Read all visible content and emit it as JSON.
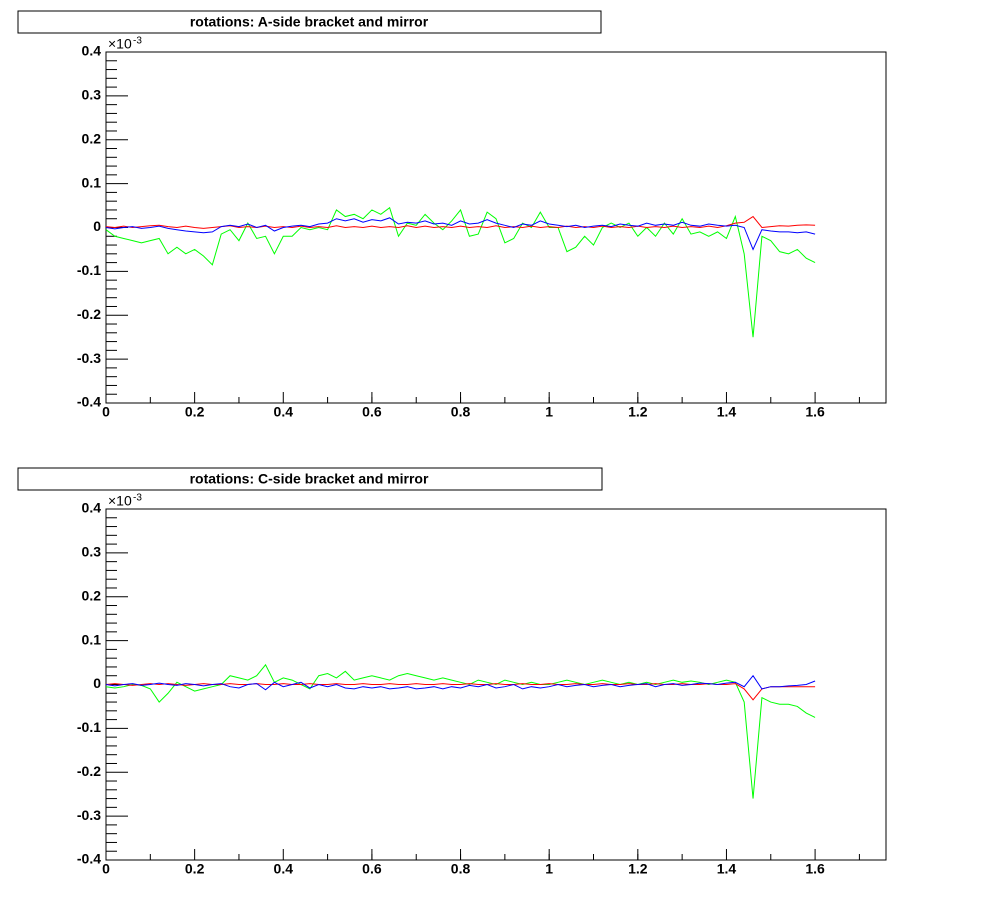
{
  "chart_data": [
    {
      "type": "line",
      "title": "rotations: A-side bracket and mirror",
      "y_multiplier": "×10",
      "y_exponent": "-3",
      "x": [
        0,
        0.02,
        0.04,
        0.06,
        0.08,
        0.1,
        0.12,
        0.14,
        0.16,
        0.18,
        0.2,
        0.22,
        0.24,
        0.26,
        0.28,
        0.3,
        0.32,
        0.34,
        0.36,
        0.38,
        0.4,
        0.42,
        0.44,
        0.46,
        0.48,
        0.5,
        0.52,
        0.54,
        0.56,
        0.58,
        0.6,
        0.62,
        0.64,
        0.66,
        0.68,
        0.7,
        0.72,
        0.74,
        0.76,
        0.78,
        0.8,
        0.82,
        0.84,
        0.86,
        0.88,
        0.9,
        0.92,
        0.94,
        0.96,
        0.98,
        1,
        1.02,
        1.04,
        1.06,
        1.08,
        1.1,
        1.12,
        1.14,
        1.16,
        1.18,
        1.2,
        1.22,
        1.24,
        1.26,
        1.28,
        1.3,
        1.32,
        1.34,
        1.36,
        1.38,
        1.4,
        1.42,
        1.44,
        1.46,
        1.48,
        1.5,
        1.52,
        1.54,
        1.56,
        1.58,
        1.6
      ],
      "series": [
        {
          "color": "#00ff00",
          "values": [
            -0.005,
            -0.02,
            -0.025,
            -0.03,
            -0.035,
            -0.03,
            -0.025,
            -0.06,
            -0.045,
            -0.06,
            -0.05,
            -0.065,
            -0.085,
            -0.015,
            -0.005,
            -0.03,
            0.01,
            -0.025,
            -0.02,
            -0.06,
            -0.02,
            -0.02,
            0,
            -0.005,
            0,
            -0.005,
            0.04,
            0.025,
            0.03,
            0.02,
            0.04,
            0.03,
            0.045,
            -0.02,
            0.01,
            0.005,
            0.03,
            0.01,
            -0.005,
            0.015,
            0.04,
            -0.02,
            -0.015,
            0.035,
            0.02,
            -0.035,
            -0.025,
            0.01,
            0,
            0.035,
            0,
            0,
            -0.055,
            -0.045,
            -0.02,
            -0.04,
            0,
            0.01,
            0,
            0.01,
            -0.02,
            0,
            -0.02,
            0.01,
            -0.015,
            0.02,
            -0.015,
            -0.01,
            -0.02,
            -0.01,
            -0.025,
            0.025,
            -0.06,
            -0.25,
            -0.02,
            -0.03,
            -0.055,
            -0.06,
            -0.05,
            -0.07,
            -0.08
          ]
        },
        {
          "color": "#ff0000",
          "values": [
            0.002,
            0,
            0.003,
            0,
            0.002,
            0.004,
            0.005,
            0.002,
            0,
            0.003,
            0,
            -0.002,
            0,
            0.002,
            0.004,
            0,
            0.002,
            0,
            0.003,
            0,
            0.002,
            0,
            0.003,
            0,
            0.002,
            0,
            0.004,
            0,
            0.002,
            0,
            0.003,
            0,
            0.002,
            0,
            0.004,
            0,
            0.003,
            0,
            0.002,
            0,
            0.003,
            0,
            0.002,
            0,
            0.004,
            0,
            0.002,
            0,
            0.003,
            0,
            0.002,
            0,
            0.003,
            0,
            0.002,
            0,
            0.003,
            0,
            0.002,
            0,
            0.003,
            0,
            0.002,
            0,
            0.003,
            0,
            0.002,
            0,
            0.003,
            0,
            0.004,
            0.01,
            0.012,
            0.025,
            0,
            0.002,
            0.004,
            0.003,
            0.005,
            0.006,
            0.005
          ]
        },
        {
          "color": "#0000ff",
          "values": [
            0,
            -0.003,
            0,
            0.002,
            -0.002,
            0,
            0.003,
            -0.002,
            -0.005,
            -0.008,
            -0.01,
            -0.012,
            -0.01,
            0.002,
            0.005,
            0.002,
            0.008,
            0,
            0.005,
            -0.008,
            0,
            0.003,
            0.005,
            0.002,
            0.008,
            0.01,
            0.02,
            0.015,
            0.02,
            0.012,
            0.018,
            0.015,
            0.022,
            0.008,
            0.012,
            0.01,
            0.015,
            0.008,
            0.01,
            0.005,
            0.015,
            0.008,
            0.01,
            0.018,
            0.01,
            0.005,
            0,
            0.008,
            0.005,
            0.015,
            0.008,
            0.005,
            0.002,
            0.005,
            0,
            0.003,
            0.005,
            0.002,
            0.008,
            0.005,
            0.003,
            0.01,
            0.005,
            0.008,
            0.005,
            0.012,
            0.005,
            0.003,
            0.008,
            0.005,
            0.003,
            0.005,
            0,
            -0.05,
            -0.005,
            -0.008,
            -0.01,
            -0.01,
            -0.012,
            -0.01,
            -0.015
          ]
        }
      ],
      "xlim": [
        0,
        1.76
      ],
      "ylim": [
        -0.4,
        0.4
      ],
      "xticks": [
        0,
        0.2,
        0.4,
        0.6,
        0.8,
        1,
        1.2,
        1.4,
        1.6
      ],
      "yticks": [
        0.4,
        0.3,
        0.2,
        0.1,
        0,
        -0.1,
        -0.2,
        -0.3,
        -0.4
      ]
    },
    {
      "type": "line",
      "title": "rotations: C-side bracket and mirror",
      "y_multiplier": "×10",
      "y_exponent": "-3",
      "x": [
        0,
        0.02,
        0.04,
        0.06,
        0.08,
        0.1,
        0.12,
        0.14,
        0.16,
        0.18,
        0.2,
        0.22,
        0.24,
        0.26,
        0.28,
        0.3,
        0.32,
        0.34,
        0.36,
        0.38,
        0.4,
        0.42,
        0.44,
        0.46,
        0.48,
        0.5,
        0.52,
        0.54,
        0.56,
        0.58,
        0.6,
        0.62,
        0.64,
        0.66,
        0.68,
        0.7,
        0.72,
        0.74,
        0.76,
        0.78,
        0.8,
        0.82,
        0.84,
        0.86,
        0.88,
        0.9,
        0.92,
        0.94,
        0.96,
        0.98,
        1,
        1.02,
        1.04,
        1.06,
        1.08,
        1.1,
        1.12,
        1.14,
        1.16,
        1.18,
        1.2,
        1.22,
        1.24,
        1.26,
        1.28,
        1.3,
        1.32,
        1.34,
        1.36,
        1.38,
        1.4,
        1.42,
        1.44,
        1.46,
        1.48,
        1.5,
        1.52,
        1.54,
        1.56,
        1.58,
        1.6
      ],
      "series": [
        {
          "color": "#00ff00",
          "values": [
            -0.005,
            -0.008,
            -0.005,
            0,
            -0.002,
            -0.01,
            -0.04,
            -0.02,
            0.005,
            -0.005,
            -0.015,
            -0.01,
            -0.005,
            0,
            0.02,
            0.015,
            0.01,
            0.02,
            0.045,
            0.005,
            0.015,
            0.01,
            0,
            -0.01,
            0.02,
            0.025,
            0.015,
            0.03,
            0.01,
            0.015,
            0.02,
            0.015,
            0.01,
            0.02,
            0.025,
            0.02,
            0.015,
            0.01,
            0.015,
            0.01,
            0.005,
            0,
            0.01,
            0.005,
            0,
            0.01,
            0.005,
            0,
            0.005,
            0,
            0,
            0.005,
            0.01,
            0.005,
            0,
            0.005,
            0.01,
            0.005,
            0,
            0.005,
            0,
            0.005,
            0,
            0.005,
            0.01,
            0.005,
            0.008,
            0.005,
            0,
            0.005,
            0.01,
            0.005,
            -0.04,
            -0.26,
            -0.03,
            -0.04,
            -0.045,
            -0.045,
            -0.05,
            -0.065,
            -0.075
          ]
        },
        {
          "color": "#ff0000",
          "values": [
            0,
            0.002,
            0,
            -0.002,
            0,
            0.002,
            0,
            0.002,
            0,
            -0.002,
            0,
            0.002,
            0,
            0,
            0.002,
            0,
            0,
            0.002,
            0,
            0,
            0.002,
            0,
            0,
            0.002,
            0,
            0,
            0.002,
            0,
            0,
            0.002,
            0,
            0,
            0.002,
            0,
            0,
            0.002,
            0,
            0,
            0.002,
            0,
            0,
            0.002,
            0,
            0,
            0.002,
            0,
            0,
            0.002,
            0,
            0,
            0.002,
            0,
            0,
            0.002,
            0,
            0,
            0.002,
            0,
            0,
            0.002,
            0,
            0,
            0.002,
            0,
            0,
            0.002,
            0,
            0,
            0.002,
            0,
            0,
            0.002,
            -0.01,
            -0.035,
            -0.01,
            -0.005,
            -0.005,
            -0.005,
            -0.005,
            -0.005,
            -0.005
          ]
        },
        {
          "color": "#0000ff",
          "values": [
            0,
            -0.003,
            0,
            0.002,
            -0.002,
            0,
            0.003,
            0,
            -0.002,
            0.002,
            0,
            -0.003,
            0,
            0.002,
            -0.005,
            -0.008,
            0,
            0.002,
            -0.012,
            0.005,
            -0.005,
            0,
            0.005,
            -0.008,
            0,
            -0.005,
            0,
            -0.008,
            -0.01,
            -0.005,
            -0.008,
            -0.005,
            -0.01,
            -0.008,
            -0.005,
            -0.01,
            -0.008,
            -0.005,
            -0.01,
            -0.005,
            -0.008,
            -0.002,
            -0.005,
            0,
            -0.008,
            -0.005,
            0,
            -0.01,
            -0.005,
            -0.008,
            -0.005,
            0,
            -0.005,
            -0.002,
            0,
            -0.005,
            -0.002,
            0,
            -0.005,
            -0.002,
            0,
            0.002,
            -0.005,
            0,
            0.002,
            -0.002,
            0,
            0.003,
            0.002,
            0,
            0.003,
            0.005,
            -0.005,
            0.02,
            -0.01,
            -0.005,
            -0.005,
            -0.003,
            -0.002,
            0,
            0.008
          ]
        }
      ],
      "xlim": [
        0,
        1.76
      ],
      "ylim": [
        -0.4,
        0.4
      ],
      "xticks": [
        0,
        0.2,
        0.4,
        0.6,
        0.8,
        1,
        1.2,
        1.4,
        1.6
      ],
      "yticks": [
        0.4,
        0.3,
        0.2,
        0.1,
        0,
        -0.1,
        -0.2,
        -0.3,
        -0.4
      ]
    }
  ]
}
